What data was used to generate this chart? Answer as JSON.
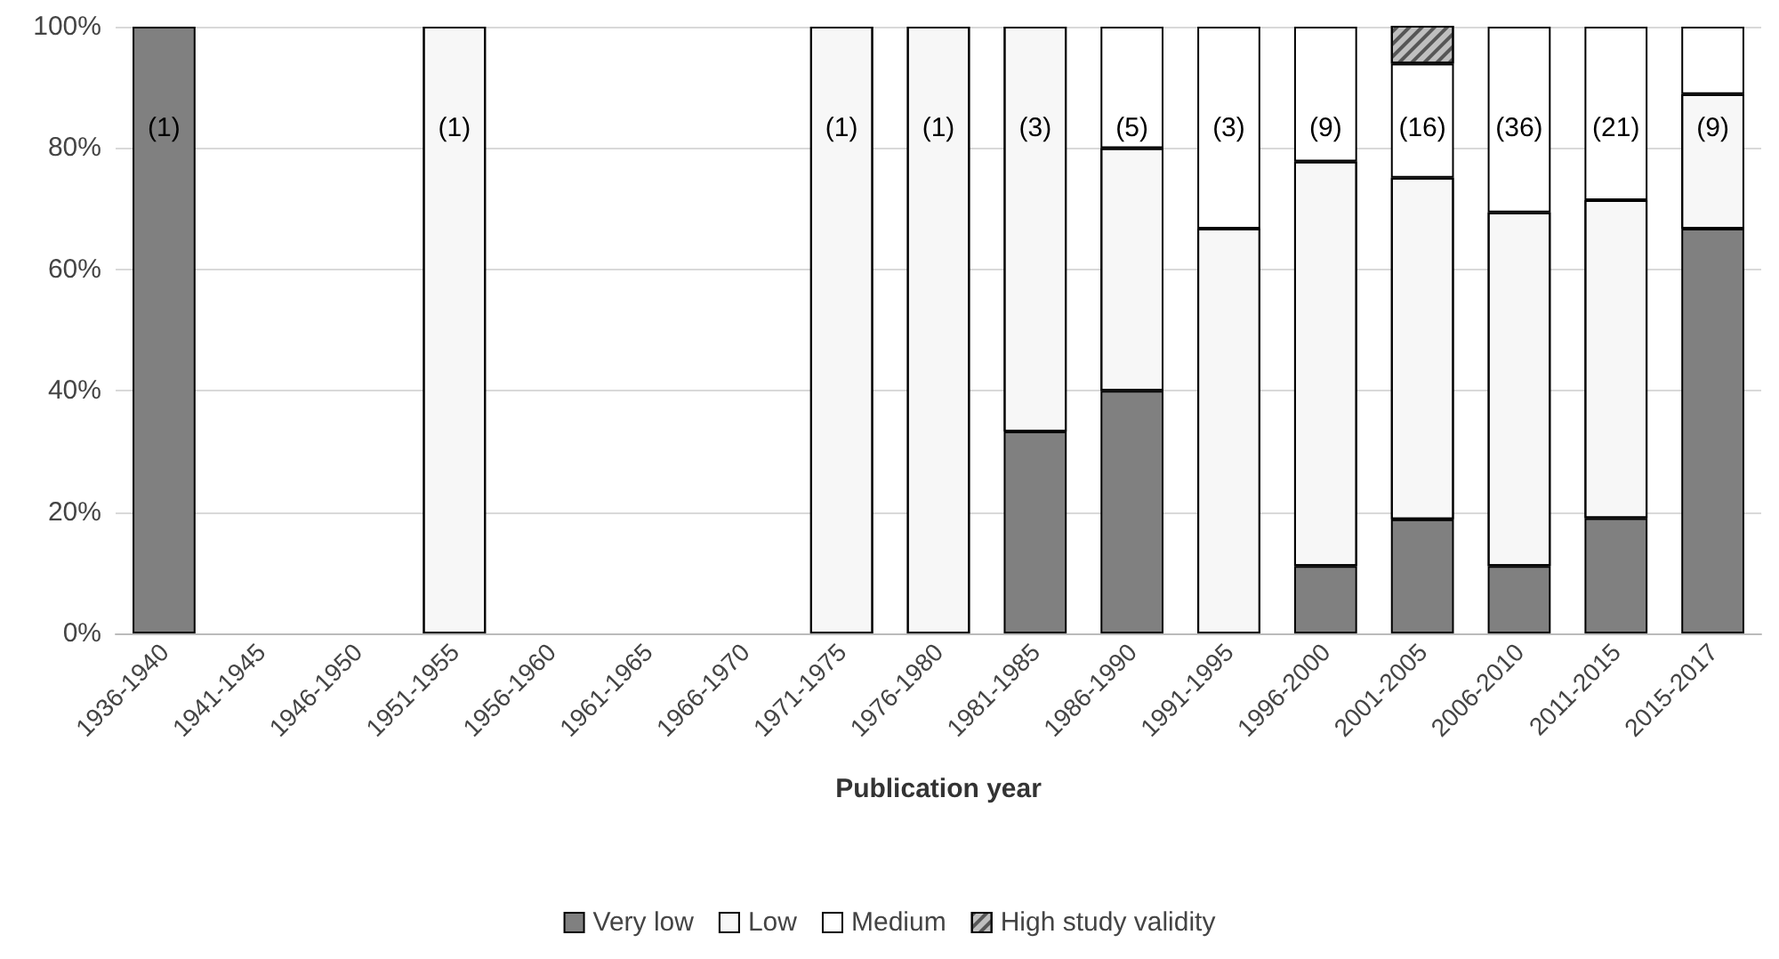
{
  "chart_data": {
    "type": "bar",
    "stacked": true,
    "xlabel": "Publication year",
    "categories": [
      "1936-1940",
      "1941-1945",
      "1946-1950",
      "1951-1955",
      "1956-1960",
      "1961-1965",
      "1966-1970",
      "1971-1975",
      "1976-1980",
      "1981-1985",
      "1986-1990",
      "1991-1995",
      "1996-2000",
      "2001-2005",
      "2006-2010",
      "2011-2015",
      "2015-2017"
    ],
    "series": [
      {
        "name": "Very low",
        "color": "#808080",
        "values": [
          100,
          null,
          null,
          0,
          null,
          null,
          null,
          0,
          0,
          33.3,
          40,
          0,
          11.1,
          18.8,
          11.1,
          19.0,
          66.7
        ]
      },
      {
        "name": "Low",
        "color": "#f7f7f7",
        "values": [
          0,
          null,
          null,
          100,
          null,
          null,
          null,
          100,
          100,
          66.7,
          40,
          66.7,
          66.7,
          56.3,
          58.3,
          52.4,
          22.2
        ]
      },
      {
        "name": "Medium",
        "color": "#ffffff",
        "values": [
          0,
          null,
          null,
          0,
          null,
          null,
          null,
          0,
          0,
          0,
          20,
          33.3,
          22.2,
          18.8,
          30.6,
          28.6,
          11.1
        ]
      },
      {
        "name": "High study validity",
        "color": "#bfbfbf",
        "values": [
          0,
          null,
          null,
          0,
          null,
          null,
          null,
          0,
          0,
          0,
          0,
          0,
          0,
          6.3,
          0,
          0,
          0
        ]
      }
    ],
    "ylim": [
      0,
      100
    ],
    "yticks": [
      {
        "value": 0,
        "label": "0%"
      },
      {
        "value": 20,
        "label": "20%"
      },
      {
        "value": 40,
        "label": "40%"
      },
      {
        "value": 60,
        "label": "60%"
      },
      {
        "value": 80,
        "label": "80%"
      },
      {
        "value": 100,
        "label": "100%"
      }
    ],
    "grid": "y",
    "legend": "bottom",
    "annotations": [
      "(1)",
      "(1)",
      "(1)",
      "(1)",
      "(3)",
      "(5)",
      "(3)",
      "(9)",
      "(16)",
      "(36)",
      "(21)",
      "(9)"
    ]
  }
}
